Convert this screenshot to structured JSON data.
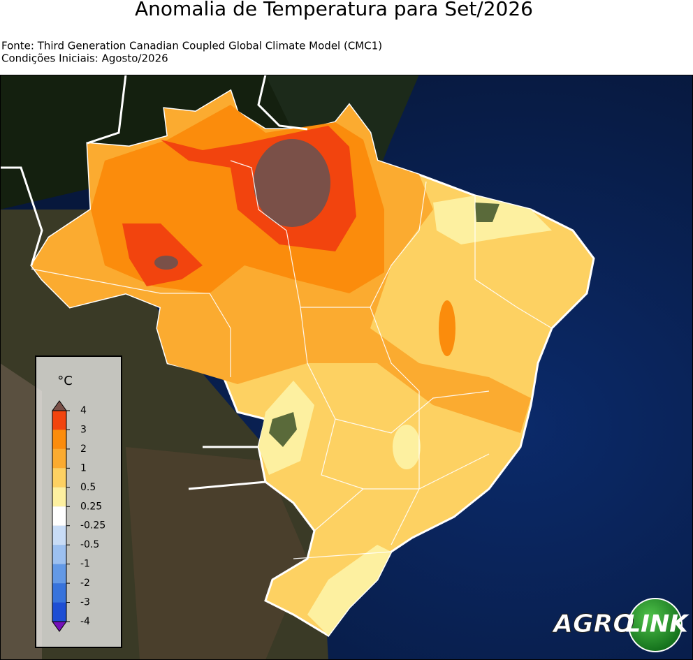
{
  "header": {
    "title": "Anomalia de Temperatura para Set/2026",
    "source": "Fonte: Third Generation Canadian Coupled Global Climate Model (CMC1)",
    "initial_conditions": "Condições Iniciais: Agosto/2026"
  },
  "legend": {
    "unit": "°C",
    "ticks": [
      4,
      3,
      2,
      1,
      0.5,
      0.25,
      -0.25,
      -0.5,
      -1,
      -2,
      -3,
      -4
    ],
    "colors": [
      "#f2440e",
      "#fb8c0c",
      "#fbab30",
      "#fdd162",
      "#fdf0a0",
      "#ffffff",
      "#c8dcf6",
      "#9cc0f0",
      "#6399e6",
      "#3773dc",
      "#1d4ed4"
    ],
    "over_color": "#7a5048",
    "under_color": "#7410b8"
  },
  "logo": {
    "left": "AGRO",
    "right": "LINK"
  }
}
